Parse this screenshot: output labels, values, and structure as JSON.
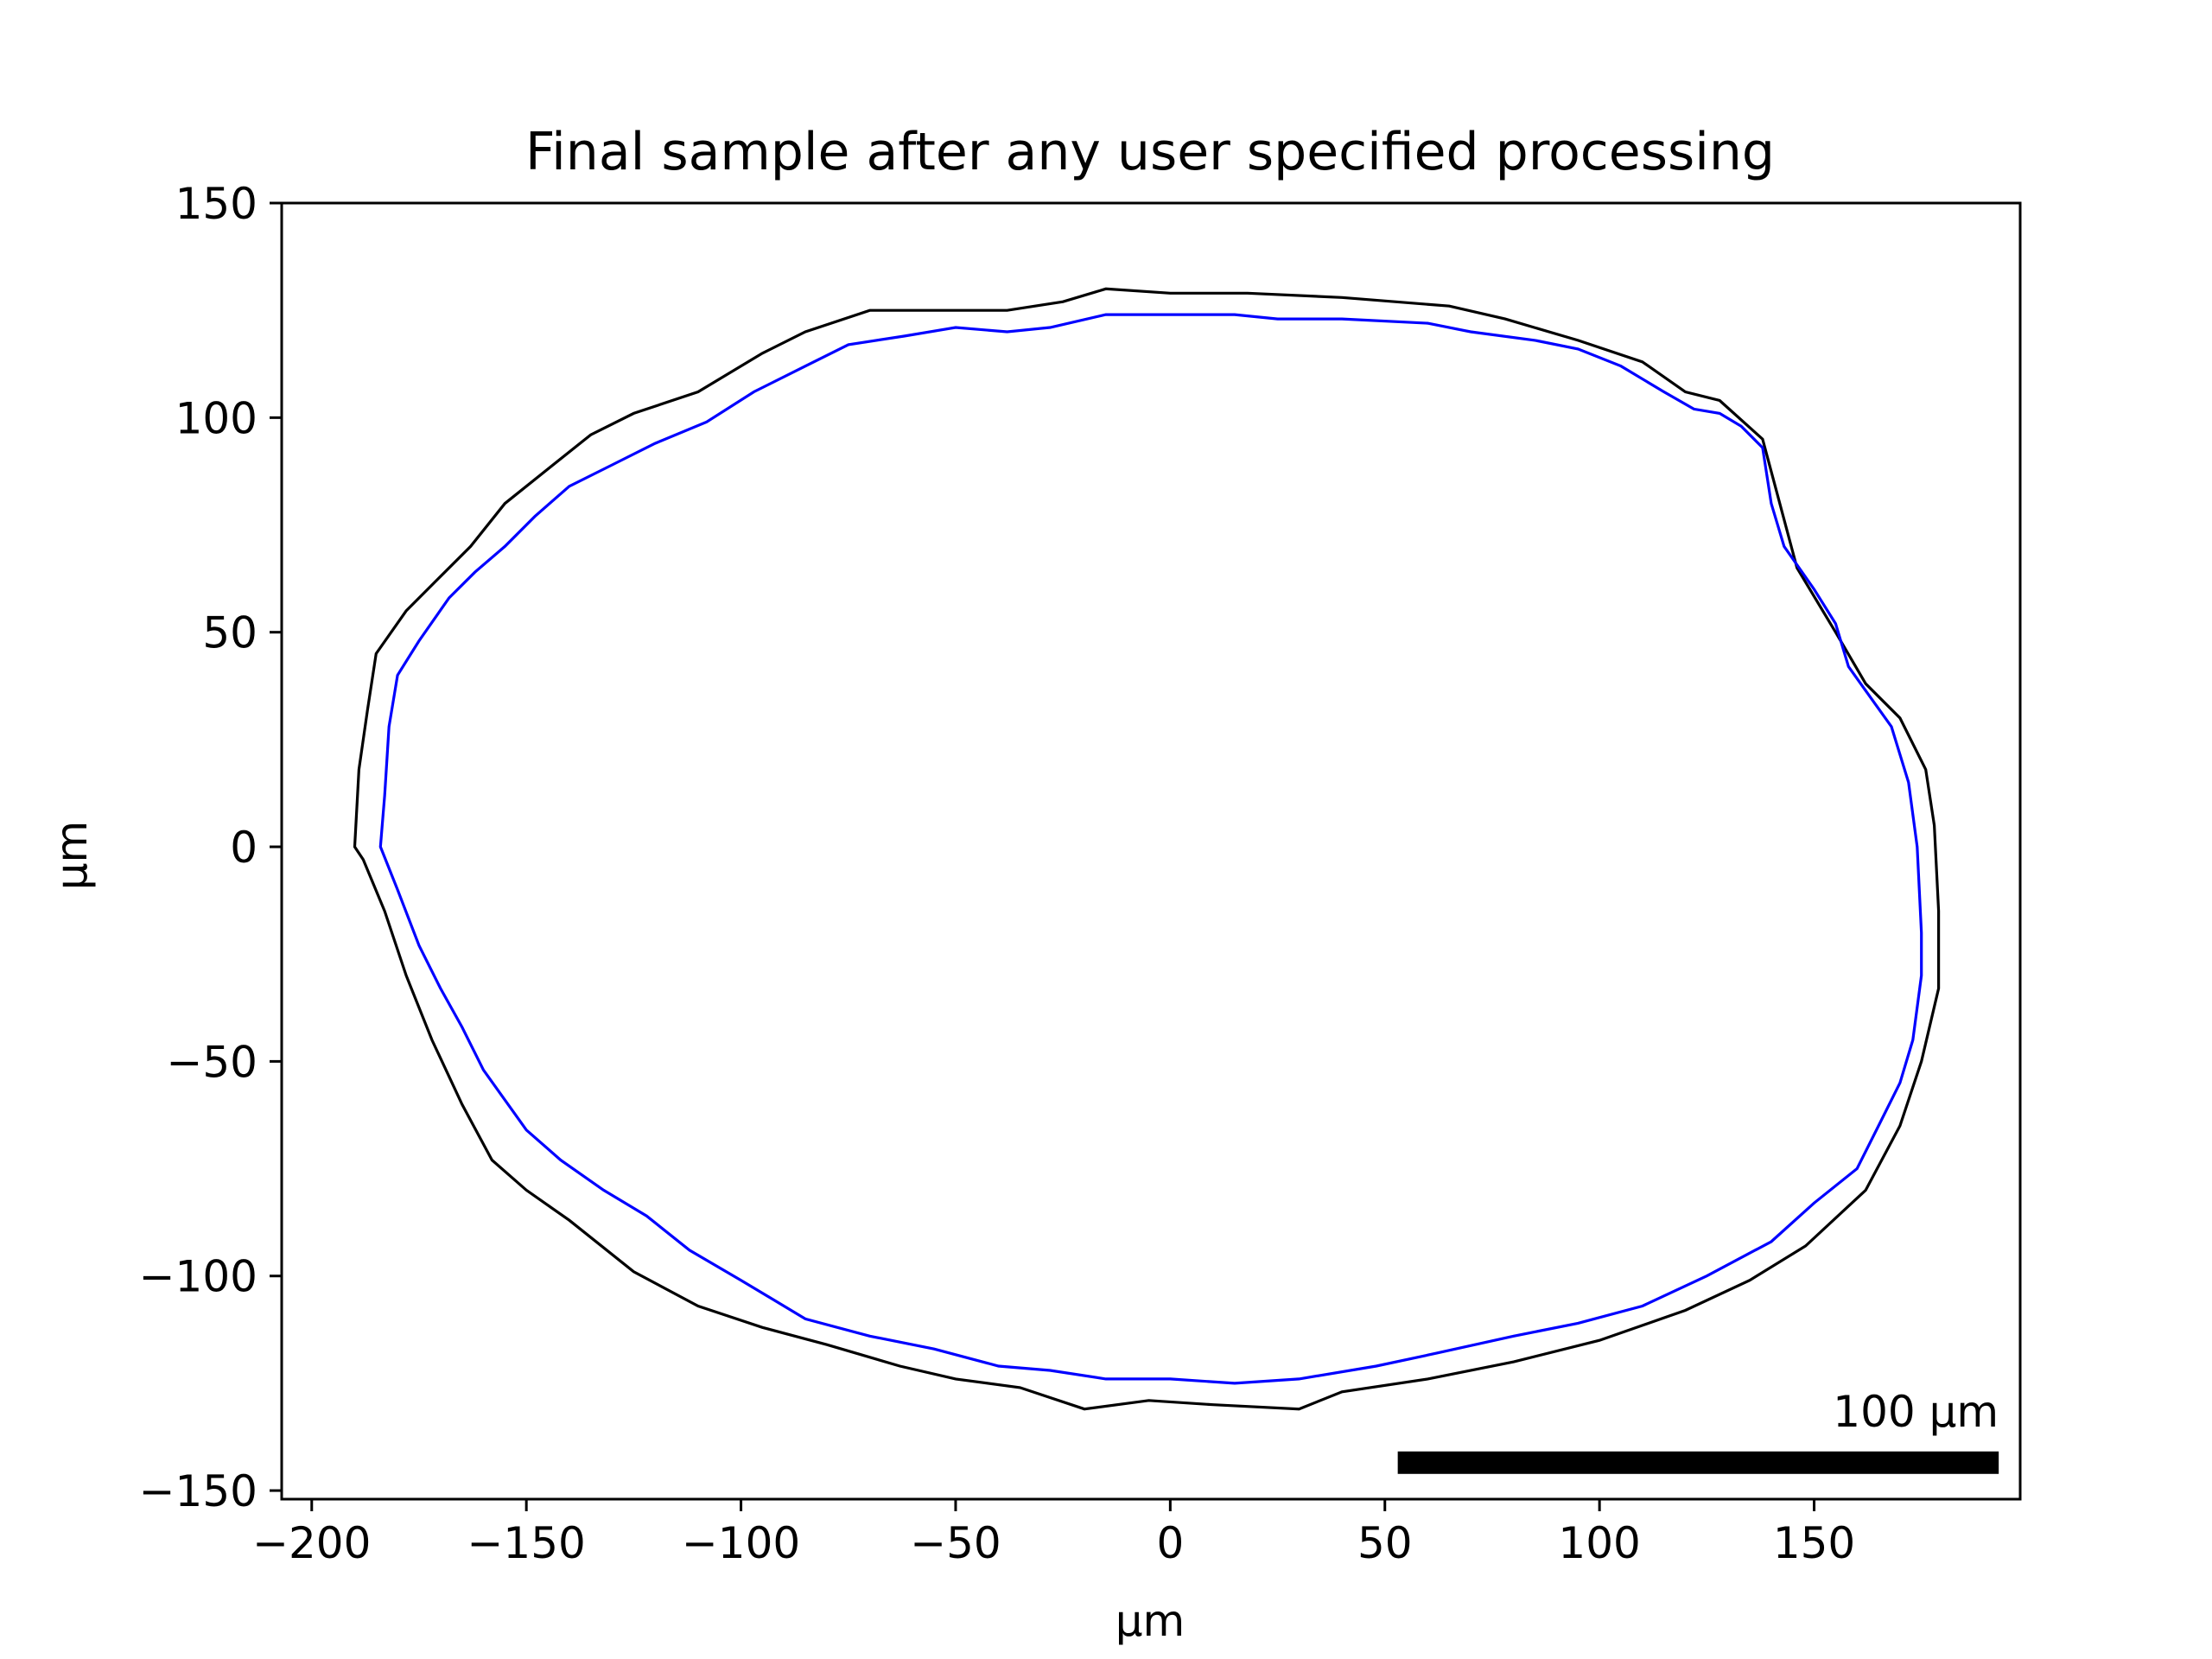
{
  "chart_data": {
    "type": "line",
    "title": "Final sample after any user specified processing",
    "xlabel": "µm",
    "ylabel": "µm",
    "xlim": [
      -207,
      198
    ],
    "ylim": [
      -152,
      150
    ],
    "xticks": [
      -200,
      -150,
      -100,
      -50,
      0,
      50,
      100,
      150
    ],
    "xtick_labels": [
      "−200",
      "−150",
      "−100",
      "−50",
      "0",
      "50",
      "100",
      "150"
    ],
    "yticks": [
      150,
      100,
      50,
      0,
      -50,
      -100,
      -150
    ],
    "ytick_labels": [
      "150",
      "100",
      "50",
      "0",
      "−50",
      "−100",
      "−150"
    ],
    "grid": false,
    "legend": "none",
    "scale_bar": {
      "label": "100 µm",
      "length": 140,
      "x_start": 53,
      "y": -143.5
    },
    "series": [
      {
        "color": "#000000",
        "closed": true,
        "points": [
          [
            -190,
            0
          ],
          [
            -189,
            18
          ],
          [
            -187,
            32
          ],
          [
            -185,
            45
          ],
          [
            -178,
            55
          ],
          [
            -170,
            63
          ],
          [
            -163,
            70
          ],
          [
            -155,
            80
          ],
          [
            -145,
            88
          ],
          [
            -135,
            96
          ],
          [
            -125,
            101
          ],
          [
            -110,
            106
          ],
          [
            -95,
            115
          ],
          [
            -85,
            120
          ],
          [
            -70,
            125
          ],
          [
            -50,
            125
          ],
          [
            -38,
            125
          ],
          [
            -25,
            127
          ],
          [
            -15,
            130
          ],
          [
            0,
            129
          ],
          [
            18,
            129
          ],
          [
            40,
            128
          ],
          [
            65,
            126
          ],
          [
            78,
            123
          ],
          [
            95,
            118
          ],
          [
            110,
            113
          ],
          [
            120,
            106
          ],
          [
            128,
            104
          ],
          [
            138,
            95
          ],
          [
            142,
            80
          ],
          [
            146,
            65
          ],
          [
            155,
            50
          ],
          [
            162,
            38
          ],
          [
            170,
            30
          ],
          [
            176,
            18
          ],
          [
            178,
            5
          ],
          [
            179,
            -15
          ],
          [
            179,
            -33
          ],
          [
            175,
            -50
          ],
          [
            170,
            -65
          ],
          [
            162,
            -80
          ],
          [
            148,
            -93
          ],
          [
            135,
            -101
          ],
          [
            120,
            -108
          ],
          [
            100,
            -115
          ],
          [
            80,
            -120
          ],
          [
            60,
            -124
          ],
          [
            40,
            -127
          ],
          [
            30,
            -131
          ],
          [
            10,
            -130
          ],
          [
            -5,
            -129
          ],
          [
            -20,
            -131
          ],
          [
            -35,
            -126
          ],
          [
            -50,
            -124
          ],
          [
            -63,
            -121
          ],
          [
            -80,
            -116
          ],
          [
            -95,
            -112
          ],
          [
            -110,
            -107
          ],
          [
            -125,
            -99
          ],
          [
            -140,
            -87
          ],
          [
            -150,
            -80
          ],
          [
            -158,
            -73
          ],
          [
            -165,
            -60
          ],
          [
            -172,
            -45
          ],
          [
            -178,
            -30
          ],
          [
            -183,
            -15
          ],
          [
            -188,
            -3
          ]
        ]
      },
      {
        "color": "#0000ff",
        "closed": true,
        "points": [
          [
            -184,
            0
          ],
          [
            -183,
            12
          ],
          [
            -182,
            28
          ],
          [
            -180,
            40
          ],
          [
            -175,
            48
          ],
          [
            -168,
            58
          ],
          [
            -162,
            64
          ],
          [
            -155,
            70
          ],
          [
            -148,
            77
          ],
          [
            -140,
            84
          ],
          [
            -130,
            89
          ],
          [
            -120,
            94
          ],
          [
            -108,
            99
          ],
          [
            -97,
            106
          ],
          [
            -85,
            112
          ],
          [
            -75,
            117
          ],
          [
            -62,
            119
          ],
          [
            -50,
            121
          ],
          [
            -38,
            120
          ],
          [
            -28,
            121
          ],
          [
            -15,
            124
          ],
          [
            0,
            124
          ],
          [
            15,
            124
          ],
          [
            25,
            123
          ],
          [
            40,
            123
          ],
          [
            60,
            122
          ],
          [
            70,
            120
          ],
          [
            85,
            118
          ],
          [
            95,
            116
          ],
          [
            105,
            112
          ],
          [
            115,
            106
          ],
          [
            122,
            102
          ],
          [
            128,
            101
          ],
          [
            133,
            98
          ],
          [
            138,
            93
          ],
          [
            140,
            80
          ],
          [
            143,
            70
          ],
          [
            150,
            60
          ],
          [
            155,
            52
          ],
          [
            158,
            42
          ],
          [
            163,
            35
          ],
          [
            168,
            28
          ],
          [
            172,
            15
          ],
          [
            174,
            0
          ],
          [
            175,
            -20
          ],
          [
            175,
            -30
          ],
          [
            173,
            -45
          ],
          [
            170,
            -55
          ],
          [
            165,
            -65
          ],
          [
            160,
            -75
          ],
          [
            150,
            -83
          ],
          [
            140,
            -92
          ],
          [
            125,
            -100
          ],
          [
            110,
            -107
          ],
          [
            95,
            -111
          ],
          [
            80,
            -114
          ],
          [
            62,
            -118
          ],
          [
            48,
            -121
          ],
          [
            30,
            -124
          ],
          [
            15,
            -125
          ],
          [
            0,
            -124
          ],
          [
            -15,
            -124
          ],
          [
            -28,
            -122
          ],
          [
            -40,
            -121
          ],
          [
            -55,
            -117
          ],
          [
            -70,
            -114
          ],
          [
            -85,
            -110
          ],
          [
            -100,
            -101
          ],
          [
            -112,
            -94
          ],
          [
            -122,
            -86
          ],
          [
            -132,
            -80
          ],
          [
            -142,
            -73
          ],
          [
            -150,
            -66
          ],
          [
            -160,
            -52
          ],
          [
            -165,
            -42
          ],
          [
            -170,
            -33
          ],
          [
            -175,
            -23
          ],
          [
            -180,
            -10
          ]
        ]
      }
    ]
  }
}
